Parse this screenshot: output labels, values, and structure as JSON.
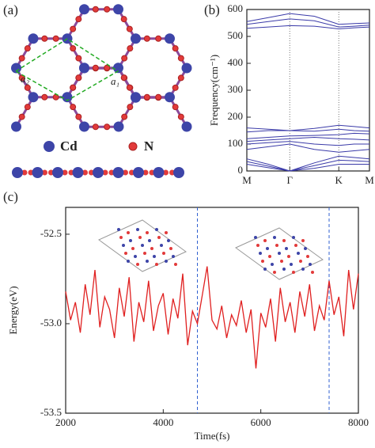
{
  "structure": {
    "panel_label": "(a)",
    "vectors": [
      "a₂",
      "a₁"
    ],
    "legend": [
      "Cd",
      "N"
    ]
  },
  "chart_data": [
    {
      "type": "line",
      "panel_label": "(b)",
      "y_label": "Frequency(cm⁻¹)",
      "color": "#3a3aa8",
      "x": [
        0,
        0.175,
        0.35,
        0.55,
        0.75,
        0.875,
        1
      ],
      "xlim": [
        0,
        1
      ],
      "xticks": [
        {
          "value": 0,
          "label": "M"
        },
        {
          "value": 0.35,
          "label": "Γ"
        },
        {
          "value": 0.75,
          "label": "K"
        },
        {
          "value": 1,
          "label": "M"
        }
      ],
      "ylim": [
        0,
        600
      ],
      "yticks": [
        0,
        100,
        200,
        300,
        400,
        500,
        600
      ],
      "series": [
        {
          "values": [
            555,
            570,
            585,
            575,
            545,
            548,
            550
          ]
        },
        {
          "values": [
            545,
            555,
            565,
            558,
            535,
            538,
            542
          ]
        },
        {
          "values": [
            530,
            535,
            540,
            538,
            528,
            532,
            535
          ]
        },
        {
          "values": [
            160,
            155,
            150,
            158,
            170,
            165,
            160
          ]
        },
        {
          "values": [
            145,
            150,
            150,
            148,
            155,
            150,
            148
          ]
        },
        {
          "values": [
            120,
            125,
            130,
            132,
            135,
            140,
            138
          ]
        },
        {
          "values": [
            110,
            115,
            120,
            125,
            120,
            118,
            115
          ]
        },
        {
          "values": [
            100,
            105,
            110,
            100,
            95,
            100,
            100
          ]
        },
        {
          "values": [
            80,
            90,
            100,
            80,
            70,
            75,
            80
          ]
        },
        {
          "values": [
            45,
            25,
            0,
            30,
            55,
            50,
            45
          ]
        },
        {
          "values": [
            35,
            18,
            0,
            20,
            40,
            38,
            35
          ]
        },
        {
          "values": [
            25,
            12,
            0,
            10,
            25,
            25,
            25
          ]
        }
      ]
    },
    {
      "type": "line",
      "panel_label": "(c)",
      "x_label": "Time(fs)",
      "y_label": "Energy(eV)",
      "color": "#e02020",
      "xlim": [
        2000,
        8000
      ],
      "xticks": [
        2000,
        4000,
        6000,
        8000
      ],
      "ylim": [
        -53.5,
        -52.35
      ],
      "yticks": [
        -52.5,
        {
          "value": -53,
          "label": "-53.0"
        },
        -53.5
      ],
      "vlines": [
        4700,
        7400
      ],
      "x": [
        2000,
        2100,
        2200,
        2300,
        2400,
        2500,
        2600,
        2700,
        2800,
        2900,
        3000,
        3100,
        3200,
        3300,
        3400,
        3500,
        3600,
        3700,
        3800,
        3900,
        4000,
        4100,
        4200,
        4300,
        4400,
        4500,
        4600,
        4700,
        4800,
        4900,
        5000,
        5100,
        5200,
        5300,
        5400,
        5500,
        5600,
        5700,
        5800,
        5900,
        6000,
        6100,
        6200,
        6300,
        6400,
        6500,
        6600,
        6700,
        6800,
        6900,
        7000,
        7100,
        7200,
        7300,
        7400,
        7500,
        7600,
        7700,
        7800,
        7900,
        8000
      ],
      "series": [
        {
          "values": [
            -52.82,
            -52.98,
            -52.88,
            -53.05,
            -52.78,
            -52.95,
            -52.7,
            -53.02,
            -52.85,
            -52.92,
            -53.08,
            -52.8,
            -52.96,
            -52.74,
            -53.1,
            -52.88,
            -52.99,
            -52.76,
            -53.04,
            -52.9,
            -52.83,
            -53.06,
            -52.86,
            -52.97,
            -52.72,
            -53.12,
            -52.93,
            -53.0,
            -52.84,
            -52.68,
            -52.98,
            -53.03,
            -52.9,
            -53.08,
            -52.95,
            -53.01,
            -52.87,
            -53.05,
            -52.92,
            -53.25,
            -52.94,
            -53.02,
            -52.86,
            -53.1,
            -52.8,
            -52.99,
            -52.88,
            -53.05,
            -52.82,
            -52.96,
            -52.78,
            -53.04,
            -52.9,
            -52.98,
            -52.76,
            -52.95,
            -52.85,
            -53.07,
            -52.7,
            -52.92,
            -52.72
          ]
        }
      ]
    }
  ]
}
